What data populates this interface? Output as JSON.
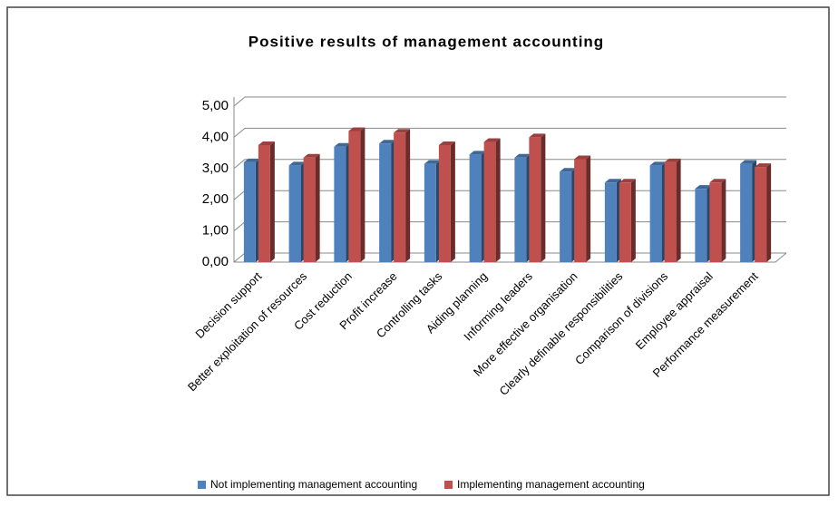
{
  "chart_data": {
    "type": "bar3d",
    "title": "Positive results of management accounting",
    "categories": [
      "Decision support",
      "Better exploitation of resources",
      "Cost reduction",
      "Profit increase",
      "Controlling tasks",
      "Aiding planning",
      "Informing leaders",
      "More effective organisation",
      "Clearly definable responsibilities",
      "Comparison of divisions",
      "Employee appraisal",
      "Performance measurement"
    ],
    "series": [
      {
        "name": "Not implementing management accounting",
        "color": "#4f81bd",
        "values": [
          3.2,
          3.1,
          3.7,
          3.8,
          3.15,
          3.45,
          3.35,
          2.9,
          2.55,
          3.1,
          2.35,
          3.15
        ]
      },
      {
        "name": "Implementing management accounting",
        "color": "#c0504d",
        "values": [
          3.75,
          3.35,
          4.2,
          4.15,
          3.75,
          3.85,
          4.0,
          3.3,
          2.55,
          3.2,
          2.55,
          3.05
        ]
      }
    ],
    "ylim": [
      0,
      5
    ],
    "yticks": [
      {
        "value": 0,
        "label": "0,00"
      },
      {
        "value": 1,
        "label": "1,00"
      },
      {
        "value": 2,
        "label": "2,00"
      },
      {
        "value": 3,
        "label": "3,00"
      },
      {
        "value": 4,
        "label": "4,00"
      },
      {
        "value": 5,
        "label": "5,00"
      }
    ],
    "grid": true,
    "legend": "bottom"
  }
}
